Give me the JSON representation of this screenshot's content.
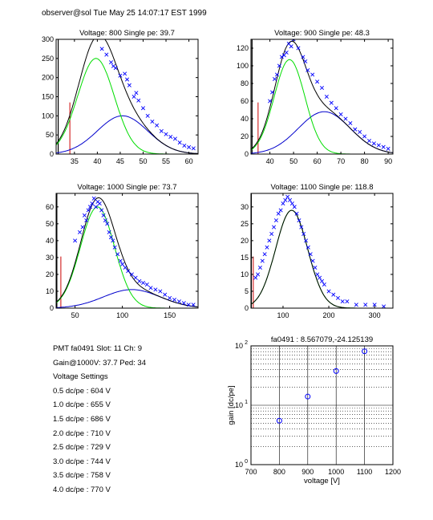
{
  "header": "observer@sol  Tue May 25 14:07:17 EST 1999",
  "info": {
    "lines": [
      "PMT fa0491 Slot: 11 Ch: 9",
      "Gain@1000V: 37.7 Ped: 34",
      "Voltage Settings",
      "0.5 dc/pe : 604 V",
      "1.0 dc/pe : 655 V",
      "1.5 dc/pe : 686 V",
      "2.0 dc/pe : 710 V",
      "2.5 dc/pe : 729 V",
      "3.0 dc/pe : 744 V",
      "3.5 dc/pe : 758 V",
      "4.0 dc/pe : 770 V"
    ]
  },
  "colors": {
    "fit": "#000000",
    "single_pe": "#00dd00",
    "multi_pe": "#0000cc",
    "data": "#0000ff",
    "pedestal": "#cc0000"
  },
  "chart_data": [
    {
      "type": "scatter",
      "title": "Voltage: 800 Single pe: 39.7",
      "xlim": [
        31,
        62
      ],
      "ylim": [
        0,
        300
      ],
      "xticks": [
        35,
        40,
        45,
        50,
        55,
        60
      ],
      "yticks": [
        0,
        50,
        100,
        150,
        200,
        250,
        300
      ],
      "ped_mu": 34,
      "spe": {
        "amp": 250,
        "mu": 39.7,
        "sigma": 4.0
      },
      "mpe": {
        "amp": 100,
        "mu": 45.5,
        "sigma": 5.5
      },
      "points": [
        [
          42,
          260
        ],
        [
          43,
          240
        ],
        [
          44,
          225
        ],
        [
          45,
          205
        ],
        [
          46,
          210
        ],
        [
          47,
          180
        ],
        [
          48,
          150
        ],
        [
          49,
          140
        ],
        [
          50,
          120
        ],
        [
          51,
          100
        ],
        [
          52,
          85
        ],
        [
          53,
          75
        ],
        [
          54,
          60
        ],
        [
          55,
          52
        ],
        [
          56,
          45
        ],
        [
          57,
          40
        ],
        [
          58,
          30
        ],
        [
          59,
          22
        ],
        [
          60,
          18
        ],
        [
          61,
          15
        ],
        [
          41,
          275
        ],
        [
          43.5,
          230
        ],
        [
          46.5,
          195
        ],
        [
          48.5,
          160
        ]
      ]
    },
    {
      "type": "scatter",
      "title": "Voltage: 900 Single pe: 48.3",
      "xlim": [
        32,
        92
      ],
      "ylim": [
        0,
        130
      ],
      "xticks": [
        40,
        50,
        60,
        70,
        80,
        90
      ],
      "yticks": [
        0,
        20,
        40,
        60,
        80,
        100,
        120
      ],
      "ped_mu": 35,
      "spe": {
        "amp": 107,
        "mu": 48.3,
        "sigma": 6.5
      },
      "mpe": {
        "amp": 48,
        "mu": 63,
        "sigma": 11
      },
      "points": [
        [
          40,
          60
        ],
        [
          41,
          70
        ],
        [
          42,
          85
        ],
        [
          43,
          90
        ],
        [
          44,
          100
        ],
        [
          45,
          110
        ],
        [
          46,
          112
        ],
        [
          47,
          115
        ],
        [
          48,
          125
        ],
        [
          49,
          122
        ],
        [
          50,
          130
        ],
        [
          52,
          120
        ],
        [
          54,
          110
        ],
        [
          55,
          105
        ],
        [
          56,
          95
        ],
        [
          58,
          90
        ],
        [
          60,
          82
        ],
        [
          62,
          75
        ],
        [
          64,
          65
        ],
        [
          66,
          58
        ],
        [
          68,
          52
        ],
        [
          70,
          45
        ],
        [
          72,
          40
        ],
        [
          74,
          35
        ],
        [
          76,
          28
        ],
        [
          78,
          25
        ],
        [
          80,
          20
        ],
        [
          82,
          15
        ],
        [
          84,
          12
        ],
        [
          86,
          10
        ],
        [
          88,
          8
        ],
        [
          90,
          6
        ]
      ]
    },
    {
      "type": "scatter",
      "title": "Voltage: 1000 Single pe: 73.7",
      "xlim": [
        30,
        180
      ],
      "ylim": [
        0,
        68
      ],
      "xticks": [
        50,
        100,
        150
      ],
      "yticks": [
        0,
        10,
        20,
        30,
        40,
        50,
        60
      ],
      "ped_mu": 35,
      "spe": {
        "amp": 60,
        "mu": 73.7,
        "sigma": 18
      },
      "mpe": {
        "amp": 11,
        "mu": 110,
        "sigma": 30
      },
      "points": [
        [
          50,
          40
        ],
        [
          55,
          45
        ],
        [
          58,
          48
        ],
        [
          60,
          55
        ],
        [
          62,
          52
        ],
        [
          64,
          58
        ],
        [
          66,
          60
        ],
        [
          68,
          62
        ],
        [
          70,
          65
        ],
        [
          72,
          60
        ],
        [
          74,
          63
        ],
        [
          76,
          62
        ],
        [
          78,
          58
        ],
        [
          80,
          55
        ],
        [
          82,
          52
        ],
        [
          84,
          50
        ],
        [
          86,
          45
        ],
        [
          88,
          42
        ],
        [
          90,
          40
        ],
        [
          92,
          36
        ],
        [
          95,
          32
        ],
        [
          98,
          28
        ],
        [
          100,
          26
        ],
        [
          103,
          24
        ],
        [
          106,
          22
        ],
        [
          110,
          20
        ],
        [
          114,
          18
        ],
        [
          118,
          16
        ],
        [
          122,
          15
        ],
        [
          126,
          14
        ],
        [
          130,
          12
        ],
        [
          135,
          11
        ],
        [
          140,
          10
        ],
        [
          145,
          8
        ],
        [
          150,
          6
        ],
        [
          155,
          5
        ],
        [
          160,
          4
        ],
        [
          165,
          3
        ],
        [
          170,
          2
        ],
        [
          175,
          2
        ]
      ]
    },
    {
      "type": "scatter",
      "title": "Voltage: 1100 Single pe: 118.8",
      "xlim": [
        30,
        340
      ],
      "ylim": [
        0,
        34
      ],
      "xticks": [
        100,
        200,
        300
      ],
      "yticks": [
        0,
        5,
        10,
        15,
        20,
        25,
        30
      ],
      "ped_mu": 35,
      "spe": {
        "amp": 29,
        "mu": 118.8,
        "sigma": 35
      },
      "mpe": {
        "amp": 0,
        "mu": 0,
        "sigma": 1
      },
      "points": [
        [
          40,
          9
        ],
        [
          45,
          10
        ],
        [
          50,
          12
        ],
        [
          55,
          14
        ],
        [
          60,
          16
        ],
        [
          65,
          18
        ],
        [
          70,
          20
        ],
        [
          75,
          22
        ],
        [
          80,
          24
        ],
        [
          85,
          26
        ],
        [
          90,
          28
        ],
        [
          95,
          29
        ],
        [
          100,
          31
        ],
        [
          105,
          32
        ],
        [
          110,
          33
        ],
        [
          115,
          32
        ],
        [
          120,
          31
        ],
        [
          125,
          30
        ],
        [
          130,
          28
        ],
        [
          135,
          26
        ],
        [
          140,
          24
        ],
        [
          145,
          22
        ],
        [
          150,
          20
        ],
        [
          155,
          18
        ],
        [
          160,
          16
        ],
        [
          165,
          14
        ],
        [
          170,
          12
        ],
        [
          175,
          10
        ],
        [
          180,
          9
        ],
        [
          185,
          8
        ],
        [
          190,
          7
        ],
        [
          200,
          5
        ],
        [
          210,
          4
        ],
        [
          220,
          3
        ],
        [
          230,
          2
        ],
        [
          240,
          2
        ],
        [
          260,
          1
        ],
        [
          280,
          1
        ],
        [
          300,
          1
        ],
        [
          320,
          0.5
        ]
      ]
    },
    {
      "type": "line",
      "title": "fa0491 : 8.567079,-24.125139",
      "xlabel": "voltage [V]",
      "ylabel": "gain [dc/pe]",
      "xlim": [
        700,
        1200
      ],
      "ylim": [
        1,
        100
      ],
      "yscale": "log",
      "grid": true,
      "xticks": [
        700,
        800,
        900,
        1000,
        1100,
        1200
      ],
      "yticks": [
        {
          "value": 1,
          "label": "10^0"
        },
        {
          "value": 10,
          "label": "10^1"
        },
        {
          "value": 100,
          "label": "10^2"
        }
      ],
      "fit": {
        "slope": 8.567079,
        "intercept": -24.125139
      },
      "x": [
        800,
        900,
        1000,
        1100
      ],
      "y": [
        5.5,
        14.0,
        37.7,
        81.0
      ]
    }
  ]
}
